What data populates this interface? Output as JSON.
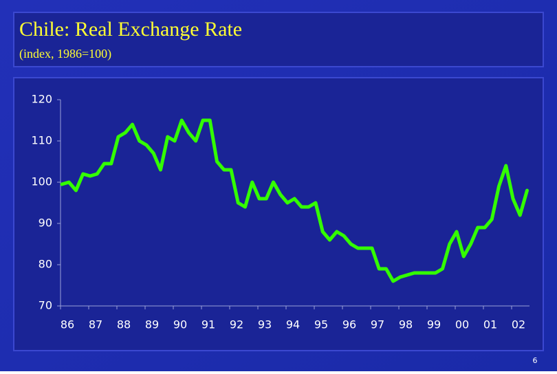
{
  "chart_data": {
    "type": "line",
    "title": "Chile: Real Exchange Rate",
    "subtitle": "(index, 1986=100)",
    "page_number": "6",
    "categories": [
      "86",
      null,
      null,
      null,
      "87",
      null,
      null,
      null,
      "88",
      null,
      null,
      null,
      "89",
      null,
      null,
      null,
      "90",
      null,
      null,
      null,
      "91",
      null,
      null,
      null,
      "92",
      null,
      null,
      null,
      "93",
      null,
      null,
      null,
      "94",
      null,
      null,
      null,
      "95",
      null,
      null,
      null,
      "96",
      null,
      null,
      null,
      "97",
      null,
      null,
      null,
      "98",
      null,
      null,
      null,
      "99",
      null,
      null,
      null,
      "00",
      null,
      null,
      null,
      "01",
      null,
      null,
      null,
      "02",
      null,
      null
    ],
    "series": [
      {
        "name": "Real Exchange Rate",
        "color": "#33ff00",
        "values": [
          99.5,
          100,
          98,
          102,
          101.5,
          102,
          104.5,
          104.5,
          111,
          112,
          114,
          110,
          109,
          107,
          103,
          111,
          110,
          115,
          112,
          110,
          115,
          115,
          105,
          103,
          103,
          95,
          94,
          100,
          96,
          96,
          100,
          97,
          95,
          96,
          94,
          94,
          95,
          88,
          86,
          88,
          87,
          85,
          84,
          84,
          84,
          79,
          79,
          76,
          77,
          77.5,
          78,
          78,
          78,
          78,
          79,
          85,
          88,
          82,
          85,
          89,
          89,
          91,
          99,
          104,
          96,
          92,
          98
        ]
      }
    ],
    "ylim": [
      70,
      120
    ],
    "yticks": [
      70,
      80,
      90,
      100,
      110,
      120
    ],
    "grid": false
  }
}
